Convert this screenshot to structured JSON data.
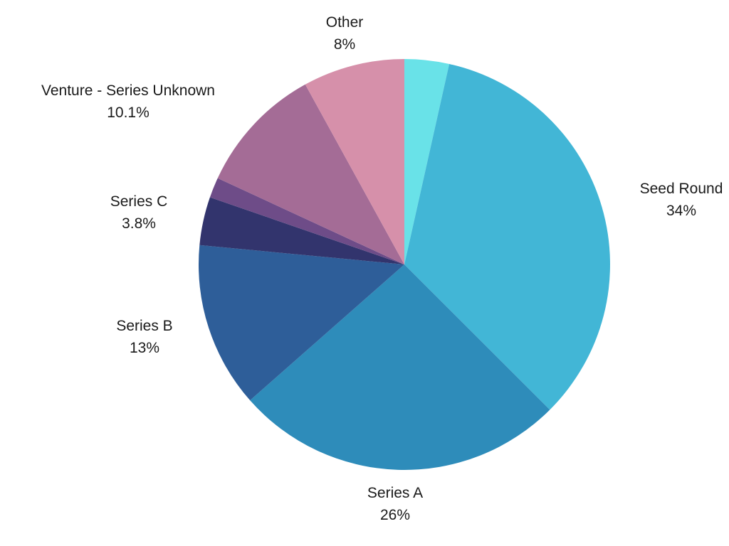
{
  "chart_data": {
    "type": "pie",
    "title": "",
    "start": "12 o'clock",
    "direction": "clockwise",
    "slices": [
      {
        "key": "unlabeled",
        "label": "",
        "value": 3.5,
        "value_label": "",
        "color": "#69e2e8"
      },
      {
        "key": "seed-round",
        "label": "Seed Round",
        "value": 34,
        "value_label": "34%",
        "color": "#42b6d6"
      },
      {
        "key": "series-a",
        "label": "Series A",
        "value": 26,
        "value_label": "26%",
        "color": "#2e8cba"
      },
      {
        "key": "series-b",
        "label": "Series B",
        "value": 13,
        "value_label": "13%",
        "color": "#2e5e99"
      },
      {
        "key": "series-c",
        "label": "Series C",
        "value": 3.8,
        "value_label": "3.8%",
        "color": "#32346d"
      },
      {
        "key": "unlabeled-2",
        "label": "",
        "value": 1.6,
        "value_label": "",
        "color": "#6e4c88"
      },
      {
        "key": "venture-series-unknown",
        "label": "Venture - Series Unknown",
        "value": 10.1,
        "value_label": "10.1%",
        "color": "#a46c96"
      },
      {
        "key": "other",
        "label": "Other",
        "value": 8,
        "value_label": "8%",
        "color": "#d690aa"
      }
    ]
  }
}
